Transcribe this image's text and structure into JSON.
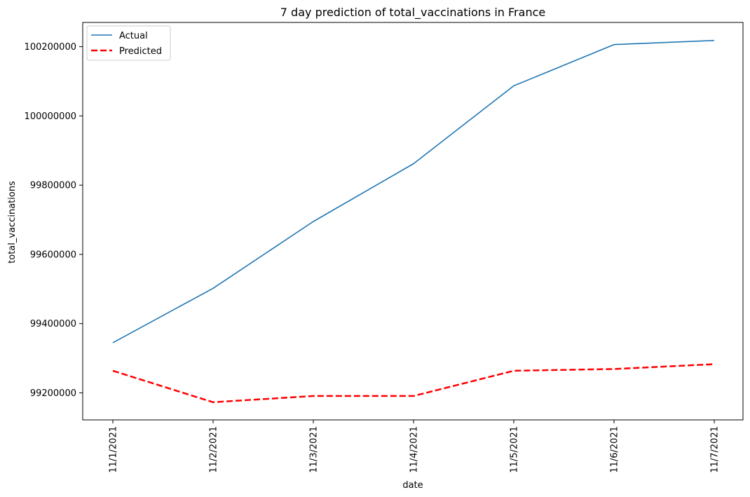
{
  "chart_data": {
    "type": "line",
    "title": "7 day prediction of total_vaccinations in France",
    "xlabel": "date",
    "ylabel": "total_vaccinations",
    "x": [
      "11/1/2021",
      "11/2/2021",
      "11/3/2021",
      "11/4/2021",
      "11/5/2021",
      "11/6/2021",
      "11/7/2021"
    ],
    "series": [
      {
        "name": "Actual",
        "color": "#1f77b4",
        "style": "solid",
        "values": [
          99345000,
          99502000,
          99695000,
          99862000,
          100087000,
          100206000,
          100218000
        ]
      },
      {
        "name": "Predicted",
        "color": "#ff0000",
        "style": "dashed",
        "values": [
          99264000,
          99173000,
          99191000,
          99191000,
          99264000,
          99269000,
          99283000
        ]
      }
    ],
    "yticks": [
      99200000,
      99400000,
      99600000,
      99800000,
      100000000,
      100200000
    ],
    "ytick_labels": [
      "99200000",
      "99400000",
      "99600000",
      "99800000",
      "100000000",
      "100200000"
    ],
    "ylim": [
      99122000,
      100270000
    ],
    "grid": false,
    "legend": "upper-left"
  }
}
